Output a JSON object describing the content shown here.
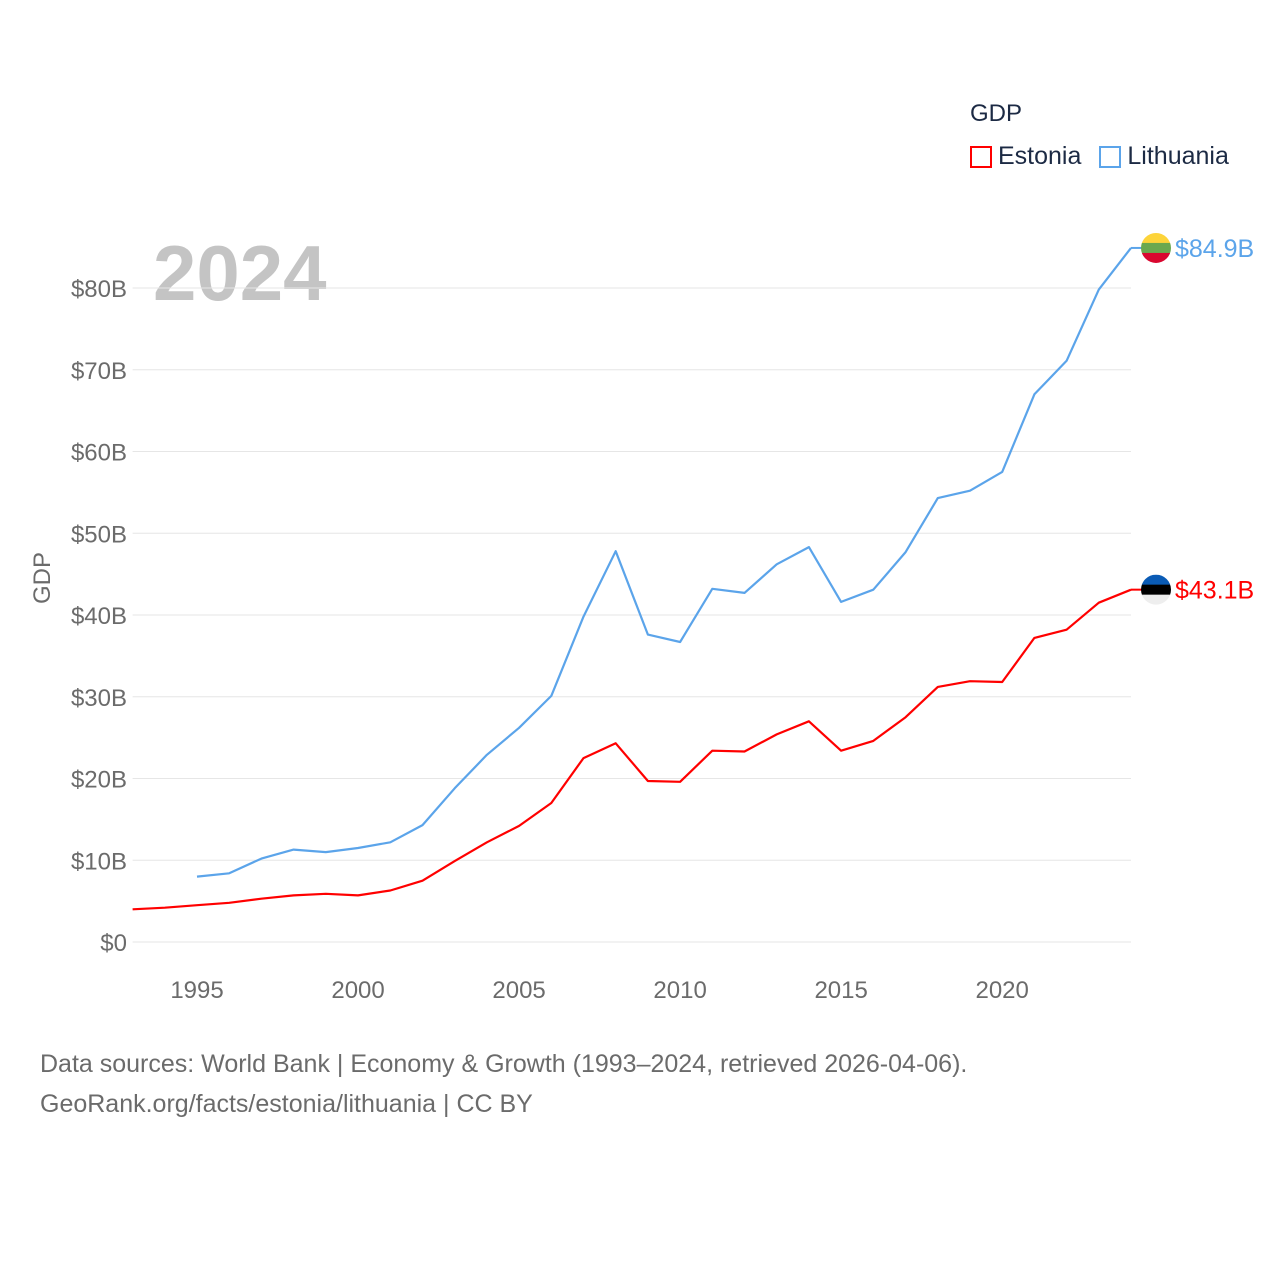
{
  "chart_data": {
    "type": "line",
    "big_year": "2024",
    "ylabel": "GDP",
    "xlabel": "",
    "ylim": [
      0,
      85
    ],
    "xlim": [
      1993,
      2024
    ],
    "yticks": [
      0,
      10,
      20,
      30,
      40,
      50,
      60,
      70,
      80
    ],
    "ytick_labels": [
      "$0",
      "$10B",
      "$20B",
      "$30B",
      "$40B",
      "$50B",
      "$60B",
      "$70B",
      "$80B"
    ],
    "xticks": [
      1995,
      2000,
      2005,
      2010,
      2015,
      2020
    ],
    "xtick_labels": [
      "1995",
      "2000",
      "2005",
      "2010",
      "2015",
      "2020"
    ],
    "grid": true,
    "legend": {
      "title": "GDP",
      "placement": "top-right"
    },
    "series": [
      {
        "name": "Estonia",
        "color": "#ff0000",
        "end_label": "$43.1B",
        "flag": "estonia-flag",
        "x": [
          1993,
          1994,
          1995,
          1996,
          1997,
          1998,
          1999,
          2000,
          2001,
          2002,
          2003,
          2004,
          2005,
          2006,
          2007,
          2008,
          2009,
          2010,
          2011,
          2012,
          2013,
          2014,
          2015,
          2016,
          2017,
          2018,
          2019,
          2020,
          2021,
          2022,
          2023,
          2024
        ],
        "values": [
          4.0,
          4.2,
          4.5,
          4.8,
          5.3,
          5.7,
          5.9,
          5.7,
          6.3,
          7.5,
          9.9,
          12.2,
          14.2,
          17.0,
          22.5,
          24.3,
          19.7,
          19.6,
          23.4,
          23.3,
          25.4,
          27.0,
          23.4,
          24.6,
          27.5,
          31.2,
          31.9,
          31.8,
          37.2,
          38.2,
          41.5,
          43.1
        ]
      },
      {
        "name": "Lithuania",
        "color": "#5ba4ea",
        "end_label": "$84.9B",
        "flag": "lithuania-flag",
        "x": [
          1995,
          1996,
          1997,
          1998,
          1999,
          2000,
          2001,
          2002,
          2003,
          2004,
          2005,
          2006,
          2007,
          2008,
          2009,
          2010,
          2011,
          2012,
          2013,
          2014,
          2015,
          2016,
          2017,
          2018,
          2019,
          2020,
          2021,
          2022,
          2023,
          2024
        ],
        "values": [
          8.0,
          8.4,
          10.2,
          11.3,
          11.0,
          11.5,
          12.2,
          14.3,
          18.8,
          22.9,
          26.2,
          30.1,
          39.8,
          47.8,
          37.6,
          36.7,
          43.2,
          42.7,
          46.2,
          48.3,
          41.6,
          43.1,
          47.7,
          54.3,
          55.2,
          57.5,
          67.0,
          71.1,
          79.8,
          84.9
        ]
      }
    ]
  },
  "footer": {
    "source_line1": "Data sources: World Bank | Economy & Growth (1993–2024, retrieved 2026-04-06).",
    "source_line2": "GeoRank.org/facts/estonia/lithuania | CC BY"
  }
}
